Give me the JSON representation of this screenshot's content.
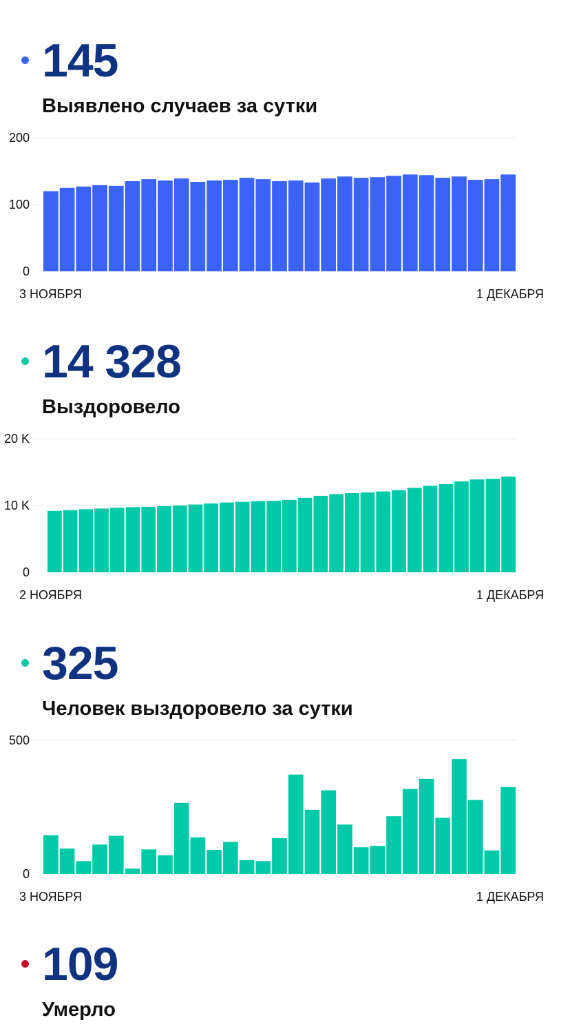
{
  "sections": [
    {
      "value": "145",
      "label": "Выявлено случаев за сутки",
      "dot_color": "#3b63f7",
      "bar_color": "#3b63f7"
    },
    {
      "value": "14 328",
      "label": "Выздоровело",
      "dot_color": "#00c9a7",
      "bar_color": "#00c9a7"
    },
    {
      "value": "325",
      "label": "Человек выздоровело за сутки",
      "dot_color": "#00c9a7",
      "bar_color": "#00c9a7"
    },
    {
      "value": "109",
      "label": "Умерло",
      "dot_color": "#c8102e"
    }
  ],
  "chart_data": [
    {
      "type": "bar",
      "ylim": [
        0,
        200
      ],
      "y_tick_labels": [
        "200",
        "100",
        "0"
      ],
      "y_tick_values": [
        200,
        100,
        0
      ],
      "x_start_label": "3 НОЯБРЯ",
      "x_end_label": "1 ДЕКАБРЯ",
      "grid": true,
      "values": [
        120,
        125,
        127,
        129,
        128,
        135,
        138,
        136,
        139,
        134,
        136,
        137,
        140,
        138,
        135,
        136,
        133,
        139,
        142,
        140,
        141,
        143,
        145,
        144,
        140,
        142,
        137,
        138,
        145
      ]
    },
    {
      "type": "bar",
      "ylim": [
        0,
        20000
      ],
      "y_tick_labels": [
        "20 K",
        "10 K",
        "0"
      ],
      "y_tick_values": [
        20000,
        10000,
        0
      ],
      "x_start_label": "2 НОЯБРЯ",
      "x_end_label": "1 ДЕКАБРЯ",
      "grid": true,
      "values": [
        9200,
        9300,
        9450,
        9550,
        9650,
        9750,
        9800,
        9900,
        10000,
        10150,
        10300,
        10450,
        10550,
        10650,
        10700,
        10850,
        11150,
        11450,
        11700,
        11850,
        11950,
        12100,
        12300,
        12650,
        12950,
        13200,
        13600,
        13900,
        14000,
        14328
      ]
    },
    {
      "type": "bar",
      "ylim": [
        0,
        500
      ],
      "y_tick_labels": [
        "500",
        "0"
      ],
      "y_tick_values": [
        500,
        0
      ],
      "x_start_label": "3 НОЯБРЯ",
      "x_end_label": "1 ДЕКАБРЯ",
      "grid": true,
      "values": [
        145,
        95,
        48,
        110,
        143,
        20,
        92,
        70,
        266,
        137,
        90,
        120,
        52,
        48,
        134,
        372,
        240,
        313,
        185,
        100,
        105,
        216,
        318,
        356,
        210,
        430,
        277,
        88,
        325
      ]
    }
  ]
}
